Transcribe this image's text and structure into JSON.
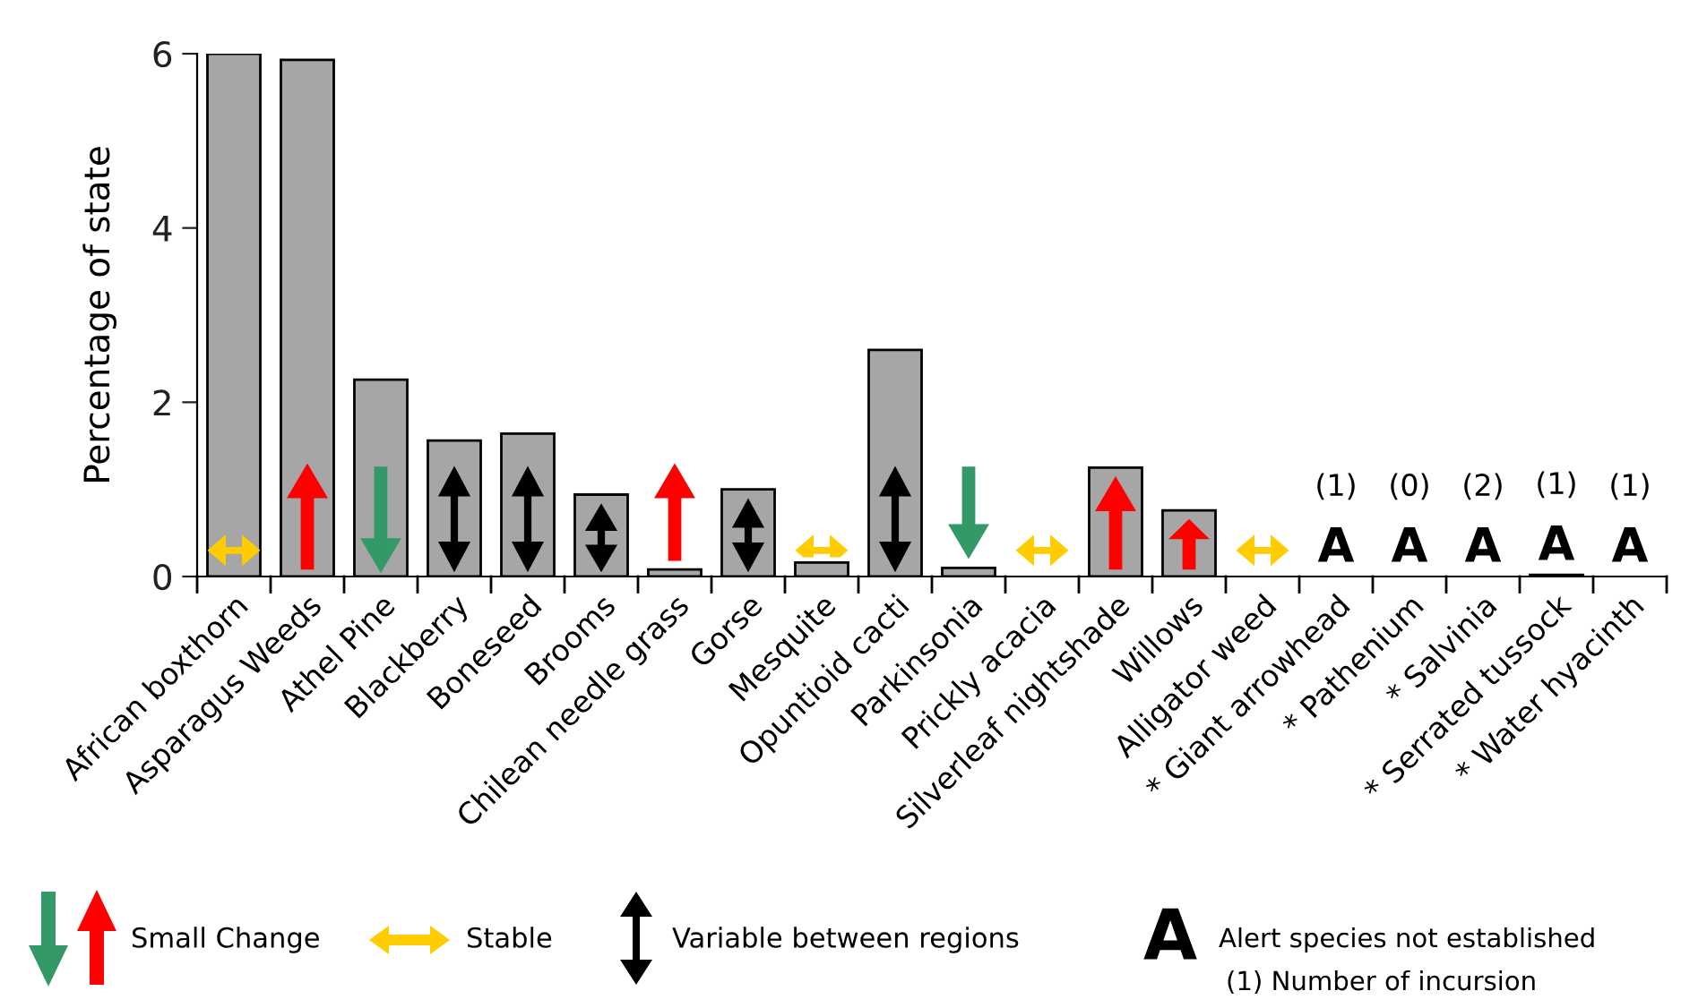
{
  "chart_data": {
    "type": "bar",
    "ylabel": "Percentage of state",
    "categories": [
      "African boxthorn",
      "Asparagus Weeds",
      "Athel Pine",
      "Blackberry",
      "Boneseed",
      "Brooms",
      "Chilean needle grass",
      "Gorse",
      "Mesquite",
      "Opuntioid cacti",
      "Parkinsonia",
      "Prickly acacia",
      "Silverleaf nightshade",
      "Willows",
      "Alligator weed",
      "* Giant arrowhead",
      "* Pathenium",
      "* Salvinia",
      "* Serrated tussock",
      "* Water hyacinth"
    ],
    "values": [
      6.0,
      5.93,
      2.26,
      1.56,
      1.64,
      0.94,
      0.08,
      1.0,
      0.16,
      2.6,
      0.1,
      0,
      1.25,
      0.76,
      0,
      0,
      0,
      0,
      0.02,
      0
    ],
    "color": "#a6a6a6",
    "ylim": [
      0,
      6
    ],
    "yticks": [
      0,
      2,
      4,
      6
    ],
    "grid": false,
    "legend": false,
    "annotations": [
      {
        "text": "A",
        "x": "* Giant arrowhead",
        "y": 0
      },
      {
        "text": "(1)",
        "x": "* Giant arrowhead",
        "y": 0
      },
      {
        "text": "A",
        "x": "* Pathenium",
        "y": 0
      },
      {
        "text": "(0)",
        "x": "* Pathenium",
        "y": 0
      },
      {
        "text": "A",
        "x": "* Salvinia",
        "y": 0
      },
      {
        "text": "(2)",
        "x": "* Salvinia",
        "y": 0
      },
      {
        "text": "A",
        "x": "* Serrated tussock",
        "y": 0.02
      },
      {
        "text": "(1)",
        "x": "* Serrated tussock",
        "y": 0.02
      },
      {
        "text": "A",
        "x": "* Water hyacinth",
        "y": 0
      },
      {
        "text": "(1)",
        "x": "* Water hyacinth",
        "y": 0
      },
      "Small Change",
      "Stable",
      "Variable between regions",
      "A",
      "Alert species not established",
      "(1) Number of incursion"
    ]
  }
}
